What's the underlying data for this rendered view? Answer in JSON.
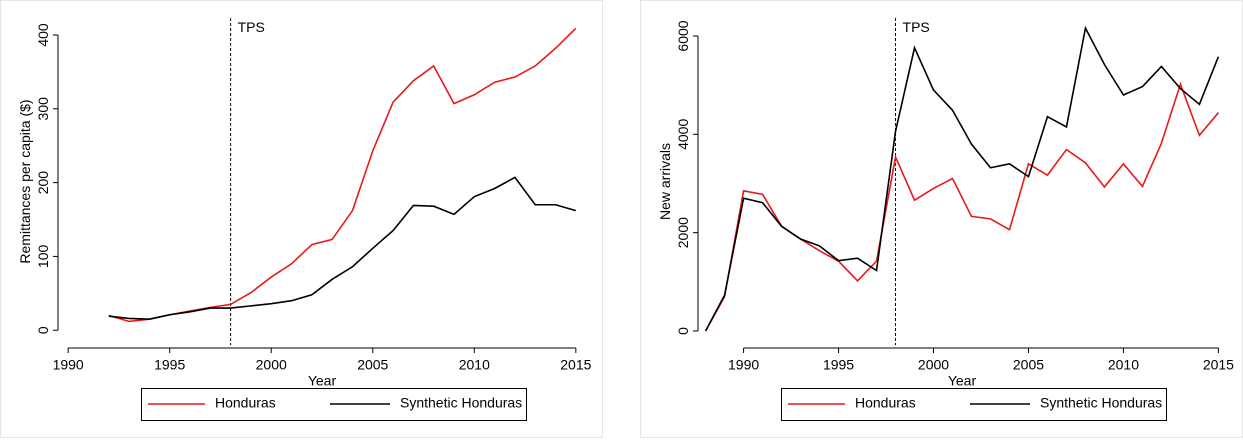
{
  "chart_data": [
    {
      "type": "line",
      "xlabel": "Year",
      "ylabel": "Remittances per capita ($)",
      "x": [
        1992,
        1993,
        1994,
        1995,
        1996,
        1997,
        1998,
        1999,
        2000,
        2001,
        2002,
        2003,
        2004,
        2005,
        2006,
        2007,
        2008,
        2009,
        2010,
        2011,
        2012,
        2013,
        2014,
        2015
      ],
      "series": [
        {
          "name": "Honduras",
          "color": "#e8191c",
          "values": [
            20,
            12,
            15,
            21,
            26,
            31,
            35,
            51,
            72,
            90,
            116,
            123,
            162,
            243,
            309,
            338,
            358,
            307,
            319,
            336,
            343,
            358,
            382,
            409
          ]
        },
        {
          "name": "Synthetic Honduras",
          "color": "#000000",
          "values": [
            19,
            16,
            15,
            21,
            25,
            30,
            30,
            33,
            36,
            40,
            48,
            69,
            86,
            111,
            135,
            169,
            168,
            157,
            181,
            192,
            207,
            170,
            170,
            162
          ]
        }
      ],
      "xlim": [
        1989.5,
        2015.5
      ],
      "ylim": [
        -20,
        423
      ],
      "xticks": [
        1990,
        1995,
        2000,
        2005,
        2010,
        2015
      ],
      "yticks": [
        0,
        100,
        200,
        300,
        400
      ],
      "vline": {
        "x": 1998,
        "label": "TPS"
      }
    },
    {
      "type": "line",
      "xlabel": "Year",
      "ylabel": "New arrivals",
      "x": [
        1988,
        1989,
        1990,
        1991,
        1992,
        1993,
        1994,
        1995,
        1996,
        1997,
        1998,
        1999,
        2000,
        2001,
        2002,
        2003,
        2004,
        2005,
        2006,
        2007,
        2008,
        2009,
        2010,
        2011,
        2012,
        2013,
        2014,
        2015
      ],
      "series": [
        {
          "name": "Honduras",
          "color": "#e8191c",
          "values": [
            0,
            700,
            2850,
            2780,
            2130,
            1870,
            1630,
            1420,
            1020,
            1420,
            3540,
            2660,
            2900,
            3100,
            2330,
            2280,
            2060,
            3400,
            3170,
            3690,
            3420,
            2930,
            3400,
            2940,
            3820,
            5020,
            3980,
            4440
          ]
        },
        {
          "name": "Synthetic Honduras",
          "color": "#000000",
          "values": [
            0,
            730,
            2700,
            2610,
            2130,
            1870,
            1730,
            1430,
            1480,
            1230,
            4060,
            5760,
            4900,
            4490,
            3800,
            3320,
            3400,
            3140,
            4360,
            4150,
            6160,
            5420,
            4800,
            4970,
            5380,
            4930,
            4610,
            5580
          ]
        }
      ],
      "xlim": [
        1987.6,
        2015.4
      ],
      "ylim": [
        -285,
        6366
      ],
      "xticks": [
        1990,
        1995,
        2000,
        2005,
        2010,
        2015
      ],
      "yticks": [
        0,
        2000,
        4000,
        6000
      ],
      "vline": {
        "x": 1998,
        "label": "TPS"
      }
    }
  ]
}
